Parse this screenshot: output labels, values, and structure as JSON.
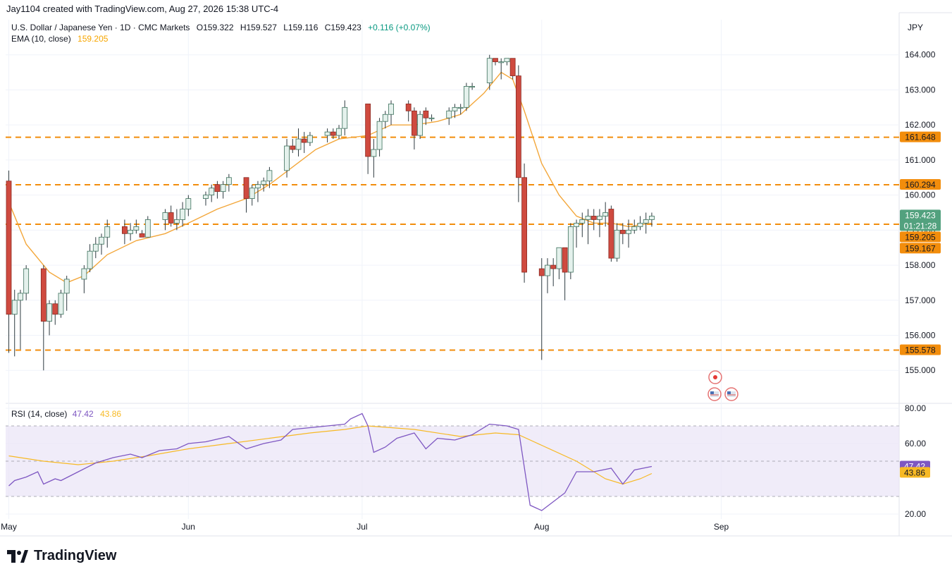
{
  "header": {
    "attribution": "Jay1104 created with TradingView.com, Aug 27, 2026 15:38 UTC-4"
  },
  "legend": {
    "symbol": "U.S. Dollar / Japanese Yen · 1D · CMC Markets",
    "open": "O159.322",
    "high": "H159.527",
    "low": "L159.116",
    "close": "C159.423",
    "change": "+0.116 (+0.07%)",
    "ema_label": "EMA (10, close)",
    "ema_value": "159.205"
  },
  "rsi_legend": {
    "label": "RSI (14, close)",
    "rsi_value": "47.42",
    "ma_value": "43.86"
  },
  "currency": "JPY",
  "footer": {
    "brand": "TradingView"
  },
  "colors": {
    "up": "#089981",
    "up_fill": "#e4f1ec",
    "down": "#cf3d33",
    "down_fill": "#cf4a3f",
    "ema": "#f3a73b",
    "level": "#f28d0c",
    "rsi": "#7e57c2",
    "rsi_ma": "#f7b924",
    "rsi_band": "#ebe6f7",
    "last_price": "#52a17e"
  },
  "chart_data": {
    "type": "candlestick",
    "title": "U.S. Dollar / Japanese Yen · 1D · CMC Markets",
    "ylim": [
      154.1,
      165.0
    ],
    "y_ticks": [
      "155.000",
      "156.000",
      "157.000",
      "158.000",
      "159.000",
      "160.000",
      "161.000",
      "162.000",
      "163.000",
      "164.000"
    ],
    "x_month_labels": [
      {
        "label": "May",
        "day": 0
      },
      {
        "label": "Jun",
        "day": 31
      },
      {
        "label": "Jul",
        "day": 61
      },
      {
        "label": "Aug",
        "day": 92
      },
      {
        "label": "Sep",
        "day": 123
      }
    ],
    "horizontal_levels": [
      {
        "value": 161.648,
        "label": "161.648"
      },
      {
        "value": 160.294,
        "label": "160.294"
      },
      {
        "value": 159.167,
        "label": "159.167"
      },
      {
        "value": 155.578,
        "label": "155.578"
      }
    ],
    "last_price": {
      "value": 159.423,
      "label": "159.423",
      "countdown": "01:21:28"
    },
    "ema_marker": {
      "value": 159.205,
      "label": "159.205"
    },
    "candles": [
      {
        "day": 0,
        "o": 160.4,
        "h": 160.7,
        "l": 155.5,
        "c": 156.6
      },
      {
        "day": 1,
        "o": 156.6,
        "h": 157.3,
        "l": 155.4,
        "c": 157.0
      },
      {
        "day": 2,
        "o": 157.0,
        "h": 157.3,
        "l": 155.6,
        "c": 157.2
      },
      {
        "day": 3,
        "o": 157.2,
        "h": 158.0,
        "l": 157.0,
        "c": 157.9
      },
      {
        "day": 6,
        "o": 157.9,
        "h": 158.0,
        "l": 155.0,
        "c": 156.4
      },
      {
        "day": 7,
        "o": 156.4,
        "h": 157.0,
        "l": 156.0,
        "c": 156.9
      },
      {
        "day": 8,
        "o": 156.9,
        "h": 157.0,
        "l": 156.3,
        "c": 156.6
      },
      {
        "day": 9,
        "o": 156.6,
        "h": 157.3,
        "l": 156.5,
        "c": 157.2
      },
      {
        "day": 10,
        "o": 157.2,
        "h": 157.7,
        "l": 156.7,
        "c": 157.6
      },
      {
        "day": 13,
        "o": 157.6,
        "h": 158.0,
        "l": 157.2,
        "c": 157.9
      },
      {
        "day": 14,
        "o": 157.9,
        "h": 158.6,
        "l": 157.8,
        "c": 158.4
      },
      {
        "day": 15,
        "o": 158.4,
        "h": 158.8,
        "l": 158.2,
        "c": 158.6
      },
      {
        "day": 16,
        "o": 158.6,
        "h": 158.9,
        "l": 158.3,
        "c": 158.8
      },
      {
        "day": 17,
        "o": 158.8,
        "h": 159.3,
        "l": 158.5,
        "c": 159.1
      },
      {
        "day": 20,
        "o": 159.1,
        "h": 159.3,
        "l": 158.6,
        "c": 158.9
      },
      {
        "day": 21,
        "o": 158.9,
        "h": 159.2,
        "l": 158.7,
        "c": 159.0
      },
      {
        "day": 22,
        "o": 159.0,
        "h": 159.3,
        "l": 158.9,
        "c": 159.1
      },
      {
        "day": 23,
        "o": 158.9,
        "h": 159.0,
        "l": 158.8,
        "c": 158.8
      },
      {
        "day": 24,
        "o": 158.8,
        "h": 159.4,
        "l": 158.8,
        "c": 159.3
      },
      {
        "day": 27,
        "o": 159.3,
        "h": 159.6,
        "l": 159.0,
        "c": 159.5
      },
      {
        "day": 28,
        "o": 159.5,
        "h": 159.7,
        "l": 159.1,
        "c": 159.2
      },
      {
        "day": 29,
        "o": 159.2,
        "h": 159.6,
        "l": 159.0,
        "c": 159.3
      },
      {
        "day": 30,
        "o": 159.3,
        "h": 159.8,
        "l": 159.1,
        "c": 159.6
      },
      {
        "day": 31,
        "o": 159.6,
        "h": 160.0,
        "l": 159.4,
        "c": 159.9
      },
      {
        "day": 34,
        "o": 159.9,
        "h": 160.1,
        "l": 159.7,
        "c": 160.0
      },
      {
        "day": 35,
        "o": 160.0,
        "h": 160.3,
        "l": 159.8,
        "c": 160.2
      },
      {
        "day": 36,
        "o": 160.3,
        "h": 160.4,
        "l": 159.9,
        "c": 160.1
      },
      {
        "day": 37,
        "o": 160.1,
        "h": 160.4,
        "l": 159.9,
        "c": 160.3
      },
      {
        "day": 38,
        "o": 160.3,
        "h": 160.6,
        "l": 160.1,
        "c": 160.5
      },
      {
        "day": 41,
        "o": 160.5,
        "h": 160.5,
        "l": 159.5,
        "c": 159.9
      },
      {
        "day": 42,
        "o": 159.9,
        "h": 160.3,
        "l": 159.7,
        "c": 160.2
      },
      {
        "day": 43,
        "o": 160.2,
        "h": 160.4,
        "l": 159.8,
        "c": 160.3
      },
      {
        "day": 44,
        "o": 160.3,
        "h": 160.5,
        "l": 160.1,
        "c": 160.4
      },
      {
        "day": 45,
        "o": 160.4,
        "h": 160.8,
        "l": 160.2,
        "c": 160.7
      },
      {
        "day": 48,
        "o": 160.7,
        "h": 161.6,
        "l": 160.5,
        "c": 161.4
      },
      {
        "day": 49,
        "o": 161.4,
        "h": 161.6,
        "l": 161.2,
        "c": 161.3
      },
      {
        "day": 50,
        "o": 161.3,
        "h": 161.9,
        "l": 161.1,
        "c": 161.6
      },
      {
        "day": 51,
        "o": 161.6,
        "h": 161.8,
        "l": 161.2,
        "c": 161.5
      },
      {
        "day": 52,
        "o": 161.5,
        "h": 161.8,
        "l": 161.4,
        "c": 161.7
      },
      {
        "day": 55,
        "o": 161.7,
        "h": 161.9,
        "l": 161.5,
        "c": 161.8
      },
      {
        "day": 56,
        "o": 161.8,
        "h": 161.9,
        "l": 161.6,
        "c": 161.7
      },
      {
        "day": 57,
        "o": 161.7,
        "h": 162.0,
        "l": 161.6,
        "c": 161.9
      },
      {
        "day": 58,
        "o": 161.9,
        "h": 162.7,
        "l": 161.7,
        "c": 162.5
      },
      {
        "day": 62,
        "o": 162.6,
        "h": 162.6,
        "l": 160.6,
        "c": 161.1
      },
      {
        "day": 63,
        "o": 161.1,
        "h": 161.6,
        "l": 160.5,
        "c": 161.3
      },
      {
        "day": 64,
        "o": 161.3,
        "h": 162.2,
        "l": 161.1,
        "c": 162.1
      },
      {
        "day": 65,
        "o": 162.1,
        "h": 162.4,
        "l": 161.9,
        "c": 162.3
      },
      {
        "day": 66,
        "o": 162.3,
        "h": 162.7,
        "l": 162.0,
        "c": 162.6
      },
      {
        "day": 69,
        "o": 162.6,
        "h": 162.7,
        "l": 162.1,
        "c": 162.4
      },
      {
        "day": 70,
        "o": 162.4,
        "h": 162.5,
        "l": 161.3,
        "c": 161.7
      },
      {
        "day": 71,
        "o": 161.7,
        "h": 162.4,
        "l": 161.6,
        "c": 162.3
      },
      {
        "day": 72,
        "o": 162.4,
        "h": 162.5,
        "l": 162.0,
        "c": 162.2
      },
      {
        "day": 73,
        "o": 162.2,
        "h": 162.3,
        "l": 162.1,
        "c": 162.2
      },
      {
        "day": 76,
        "o": 162.2,
        "h": 162.5,
        "l": 162.0,
        "c": 162.4
      },
      {
        "day": 77,
        "o": 162.4,
        "h": 162.6,
        "l": 162.2,
        "c": 162.5
      },
      {
        "day": 78,
        "o": 162.5,
        "h": 162.6,
        "l": 162.3,
        "c": 162.5
      },
      {
        "day": 79,
        "o": 162.5,
        "h": 163.2,
        "l": 162.4,
        "c": 163.1
      },
      {
        "day": 80,
        "o": 163.1,
        "h": 163.2,
        "l": 163.0,
        "c": 163.1
      },
      {
        "day": 83,
        "o": 163.2,
        "h": 164.0,
        "l": 163.0,
        "c": 163.9
      },
      {
        "day": 84,
        "o": 163.9,
        "h": 163.9,
        "l": 163.7,
        "c": 163.8
      },
      {
        "day": 85,
        "o": 163.8,
        "h": 163.9,
        "l": 163.3,
        "c": 163.8
      },
      {
        "day": 86,
        "o": 163.8,
        "h": 163.9,
        "l": 163.7,
        "c": 163.9
      },
      {
        "day": 87,
        "o": 163.9,
        "h": 163.9,
        "l": 163.3,
        "c": 163.4
      },
      {
        "day": 88,
        "o": 163.4,
        "h": 163.7,
        "l": 159.8,
        "c": 160.5
      },
      {
        "day": 89,
        "o": 160.5,
        "h": 160.9,
        "l": 157.5,
        "c": 157.8
      },
      {
        "day": 92,
        "o": 157.9,
        "h": 158.2,
        "l": 155.3,
        "c": 157.7
      },
      {
        "day": 93,
        "o": 157.7,
        "h": 158.2,
        "l": 157.2,
        "c": 158.0
      },
      {
        "day": 94,
        "o": 158.0,
        "h": 158.2,
        "l": 157.4,
        "c": 157.9
      },
      {
        "day": 95,
        "o": 157.9,
        "h": 158.5,
        "l": 157.6,
        "c": 158.5
      },
      {
        "day": 96,
        "o": 158.5,
        "h": 158.5,
        "l": 157.0,
        "c": 157.8
      },
      {
        "day": 97,
        "o": 157.8,
        "h": 159.2,
        "l": 157.6,
        "c": 159.1
      },
      {
        "day": 98,
        "o": 159.1,
        "h": 159.3,
        "l": 158.5,
        "c": 159.2
      },
      {
        "day": 99,
        "o": 159.2,
        "h": 159.5,
        "l": 158.8,
        "c": 159.3
      },
      {
        "day": 100,
        "o": 159.3,
        "h": 159.6,
        "l": 158.6,
        "c": 159.4
      },
      {
        "day": 101,
        "o": 159.4,
        "h": 159.6,
        "l": 159.0,
        "c": 159.3
      },
      {
        "day": 102,
        "o": 159.3,
        "h": 159.6,
        "l": 158.8,
        "c": 159.4
      },
      {
        "day": 103,
        "o": 159.4,
        "h": 159.8,
        "l": 159.1,
        "c": 159.5
      },
      {
        "day": 104,
        "o": 159.6,
        "h": 159.7,
        "l": 158.1,
        "c": 158.2
      },
      {
        "day": 105,
        "o": 158.2,
        "h": 159.2,
        "l": 158.1,
        "c": 159.0
      },
      {
        "day": 106,
        "o": 159.0,
        "h": 159.2,
        "l": 158.6,
        "c": 158.9
      },
      {
        "day": 107,
        "o": 158.9,
        "h": 159.3,
        "l": 158.5,
        "c": 159.0
      },
      {
        "day": 108,
        "o": 159.0,
        "h": 159.3,
        "l": 158.9,
        "c": 159.1
      },
      {
        "day": 109,
        "o": 159.1,
        "h": 159.4,
        "l": 159.0,
        "c": 159.2
      },
      {
        "day": 110,
        "o": 159.2,
        "h": 159.5,
        "l": 158.9,
        "c": 159.3
      },
      {
        "day": 111,
        "o": 159.3,
        "h": 159.5,
        "l": 159.1,
        "c": 159.4
      }
    ],
    "ema": [
      {
        "day": 0,
        "v": 159.8
      },
      {
        "day": 3,
        "v": 158.6
      },
      {
        "day": 7,
        "v": 157.8
      },
      {
        "day": 10,
        "v": 157.5
      },
      {
        "day": 13,
        "v": 157.7
      },
      {
        "day": 17,
        "v": 158.3
      },
      {
        "day": 22,
        "v": 158.7
      },
      {
        "day": 27,
        "v": 158.9
      },
      {
        "day": 31,
        "v": 159.2
      },
      {
        "day": 36,
        "v": 159.6
      },
      {
        "day": 41,
        "v": 159.9
      },
      {
        "day": 45,
        "v": 160.3
      },
      {
        "day": 49,
        "v": 160.8
      },
      {
        "day": 53,
        "v": 161.3
      },
      {
        "day": 57,
        "v": 161.6
      },
      {
        "day": 62,
        "v": 161.7
      },
      {
        "day": 66,
        "v": 162.0
      },
      {
        "day": 70,
        "v": 162.0
      },
      {
        "day": 74,
        "v": 162.1
      },
      {
        "day": 78,
        "v": 162.3
      },
      {
        "day": 82,
        "v": 162.9
      },
      {
        "day": 85,
        "v": 163.5
      },
      {
        "day": 87,
        "v": 163.3
      },
      {
        "day": 89,
        "v": 162.4
      },
      {
        "day": 92,
        "v": 160.9
      },
      {
        "day": 95,
        "v": 160.0
      },
      {
        "day": 98,
        "v": 159.4
      },
      {
        "day": 101,
        "v": 159.2
      },
      {
        "day": 104,
        "v": 159.2
      },
      {
        "day": 107,
        "v": 159.1
      },
      {
        "day": 111,
        "v": 159.2
      }
    ],
    "rsi": {
      "ylim": [
        18,
        82
      ],
      "y_ticks": [
        "20.00",
        "60.00",
        "80.00"
      ],
      "overbought": 70,
      "oversold": 30,
      "rsi_series": [
        {
          "day": 0,
          "v": 36
        },
        {
          "day": 1,
          "v": 39
        },
        {
          "day": 3,
          "v": 41
        },
        {
          "day": 5,
          "v": 44
        },
        {
          "day": 6,
          "v": 37
        },
        {
          "day": 8,
          "v": 40
        },
        {
          "day": 9,
          "v": 39
        },
        {
          "day": 12,
          "v": 44
        },
        {
          "day": 15,
          "v": 49
        },
        {
          "day": 18,
          "v": 52
        },
        {
          "day": 21,
          "v": 54
        },
        {
          "day": 23,
          "v": 52
        },
        {
          "day": 26,
          "v": 56
        },
        {
          "day": 29,
          "v": 57
        },
        {
          "day": 31,
          "v": 60
        },
        {
          "day": 34,
          "v": 61
        },
        {
          "day": 38,
          "v": 64
        },
        {
          "day": 41,
          "v": 57
        },
        {
          "day": 44,
          "v": 60
        },
        {
          "day": 47,
          "v": 62
        },
        {
          "day": 49,
          "v": 68
        },
        {
          "day": 52,
          "v": 69
        },
        {
          "day": 55,
          "v": 70
        },
        {
          "day": 58,
          "v": 71
        },
        {
          "day": 59,
          "v": 74
        },
        {
          "day": 61,
          "v": 77
        },
        {
          "day": 62,
          "v": 70
        },
        {
          "day": 63,
          "v": 55
        },
        {
          "day": 65,
          "v": 58
        },
        {
          "day": 67,
          "v": 63
        },
        {
          "day": 70,
          "v": 66
        },
        {
          "day": 72,
          "v": 57
        },
        {
          "day": 74,
          "v": 63
        },
        {
          "day": 77,
          "v": 62
        },
        {
          "day": 80,
          "v": 65
        },
        {
          "day": 83,
          "v": 71
        },
        {
          "day": 86,
          "v": 70
        },
        {
          "day": 88,
          "v": 68
        },
        {
          "day": 90,
          "v": 25
        },
        {
          "day": 92,
          "v": 22
        },
        {
          "day": 94,
          "v": 27
        },
        {
          "day": 96,
          "v": 32
        },
        {
          "day": 98,
          "v": 44
        },
        {
          "day": 101,
          "v": 44
        },
        {
          "day": 104,
          "v": 46
        },
        {
          "day": 106,
          "v": 37
        },
        {
          "day": 108,
          "v": 45
        },
        {
          "day": 111,
          "v": 47
        }
      ],
      "ma_series": [
        {
          "day": 0,
          "v": 53
        },
        {
          "day": 6,
          "v": 50
        },
        {
          "day": 12,
          "v": 48
        },
        {
          "day": 18,
          "v": 50
        },
        {
          "day": 24,
          "v": 53
        },
        {
          "day": 31,
          "v": 57
        },
        {
          "day": 38,
          "v": 60
        },
        {
          "day": 45,
          "v": 63
        },
        {
          "day": 52,
          "v": 66
        },
        {
          "day": 58,
          "v": 68
        },
        {
          "day": 62,
          "v": 70
        },
        {
          "day": 70,
          "v": 68
        },
        {
          "day": 78,
          "v": 64
        },
        {
          "day": 84,
          "v": 66
        },
        {
          "day": 88,
          "v": 65
        },
        {
          "day": 92,
          "v": 59
        },
        {
          "day": 98,
          "v": 50
        },
        {
          "day": 103,
          "v": 40
        },
        {
          "day": 106,
          "v": 37
        },
        {
          "day": 109,
          "v": 40
        },
        {
          "day": 111,
          "v": 43
        }
      ]
    }
  }
}
